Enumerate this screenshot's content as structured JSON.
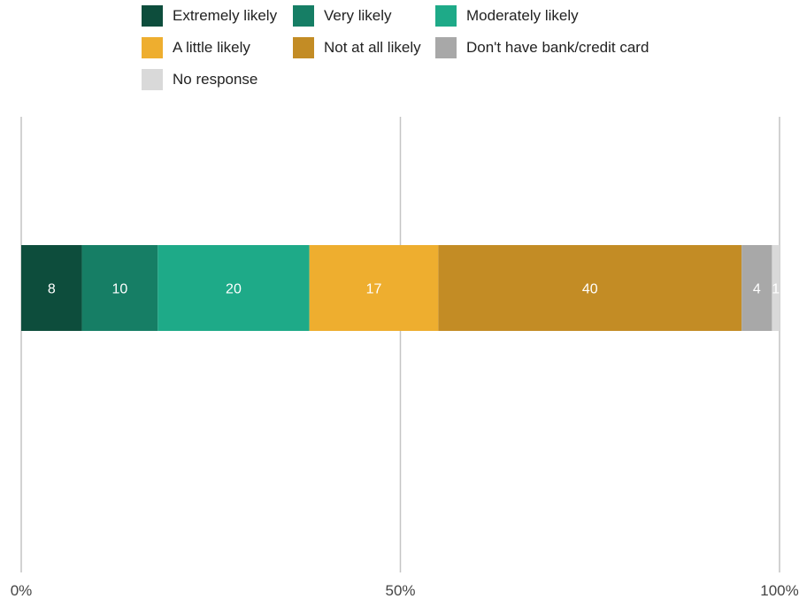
{
  "chart_data": {
    "type": "bar",
    "orientation": "horizontal",
    "stacked": true,
    "categories": [
      ""
    ],
    "series": [
      {
        "name": "Extremely likely",
        "values": [
          8
        ],
        "color": "#0d4d3c"
      },
      {
        "name": "Very likely",
        "values": [
          10
        ],
        "color": "#167e65"
      },
      {
        "name": "Moderately likely",
        "values": [
          20
        ],
        "color": "#1eaa88"
      },
      {
        "name": "A little likely",
        "values": [
          17
        ],
        "color": "#eeae2f"
      },
      {
        "name": "Not at all likely",
        "values": [
          40
        ],
        "color": "#c38c25"
      },
      {
        "name": "Don't have bank/credit card",
        "values": [
          4
        ],
        "color": "#a8a8a8"
      },
      {
        "name": "No response",
        "values": [
          1
        ],
        "color": "#d9d9d9"
      }
    ],
    "xlim": [
      0,
      100
    ],
    "x_ticks": [
      "0%",
      "50%",
      "100%"
    ],
    "x_tick_values": [
      0,
      50,
      100
    ],
    "grid": true,
    "legend_position": "top",
    "title": "",
    "xlabel": "",
    "ylabel": ""
  }
}
